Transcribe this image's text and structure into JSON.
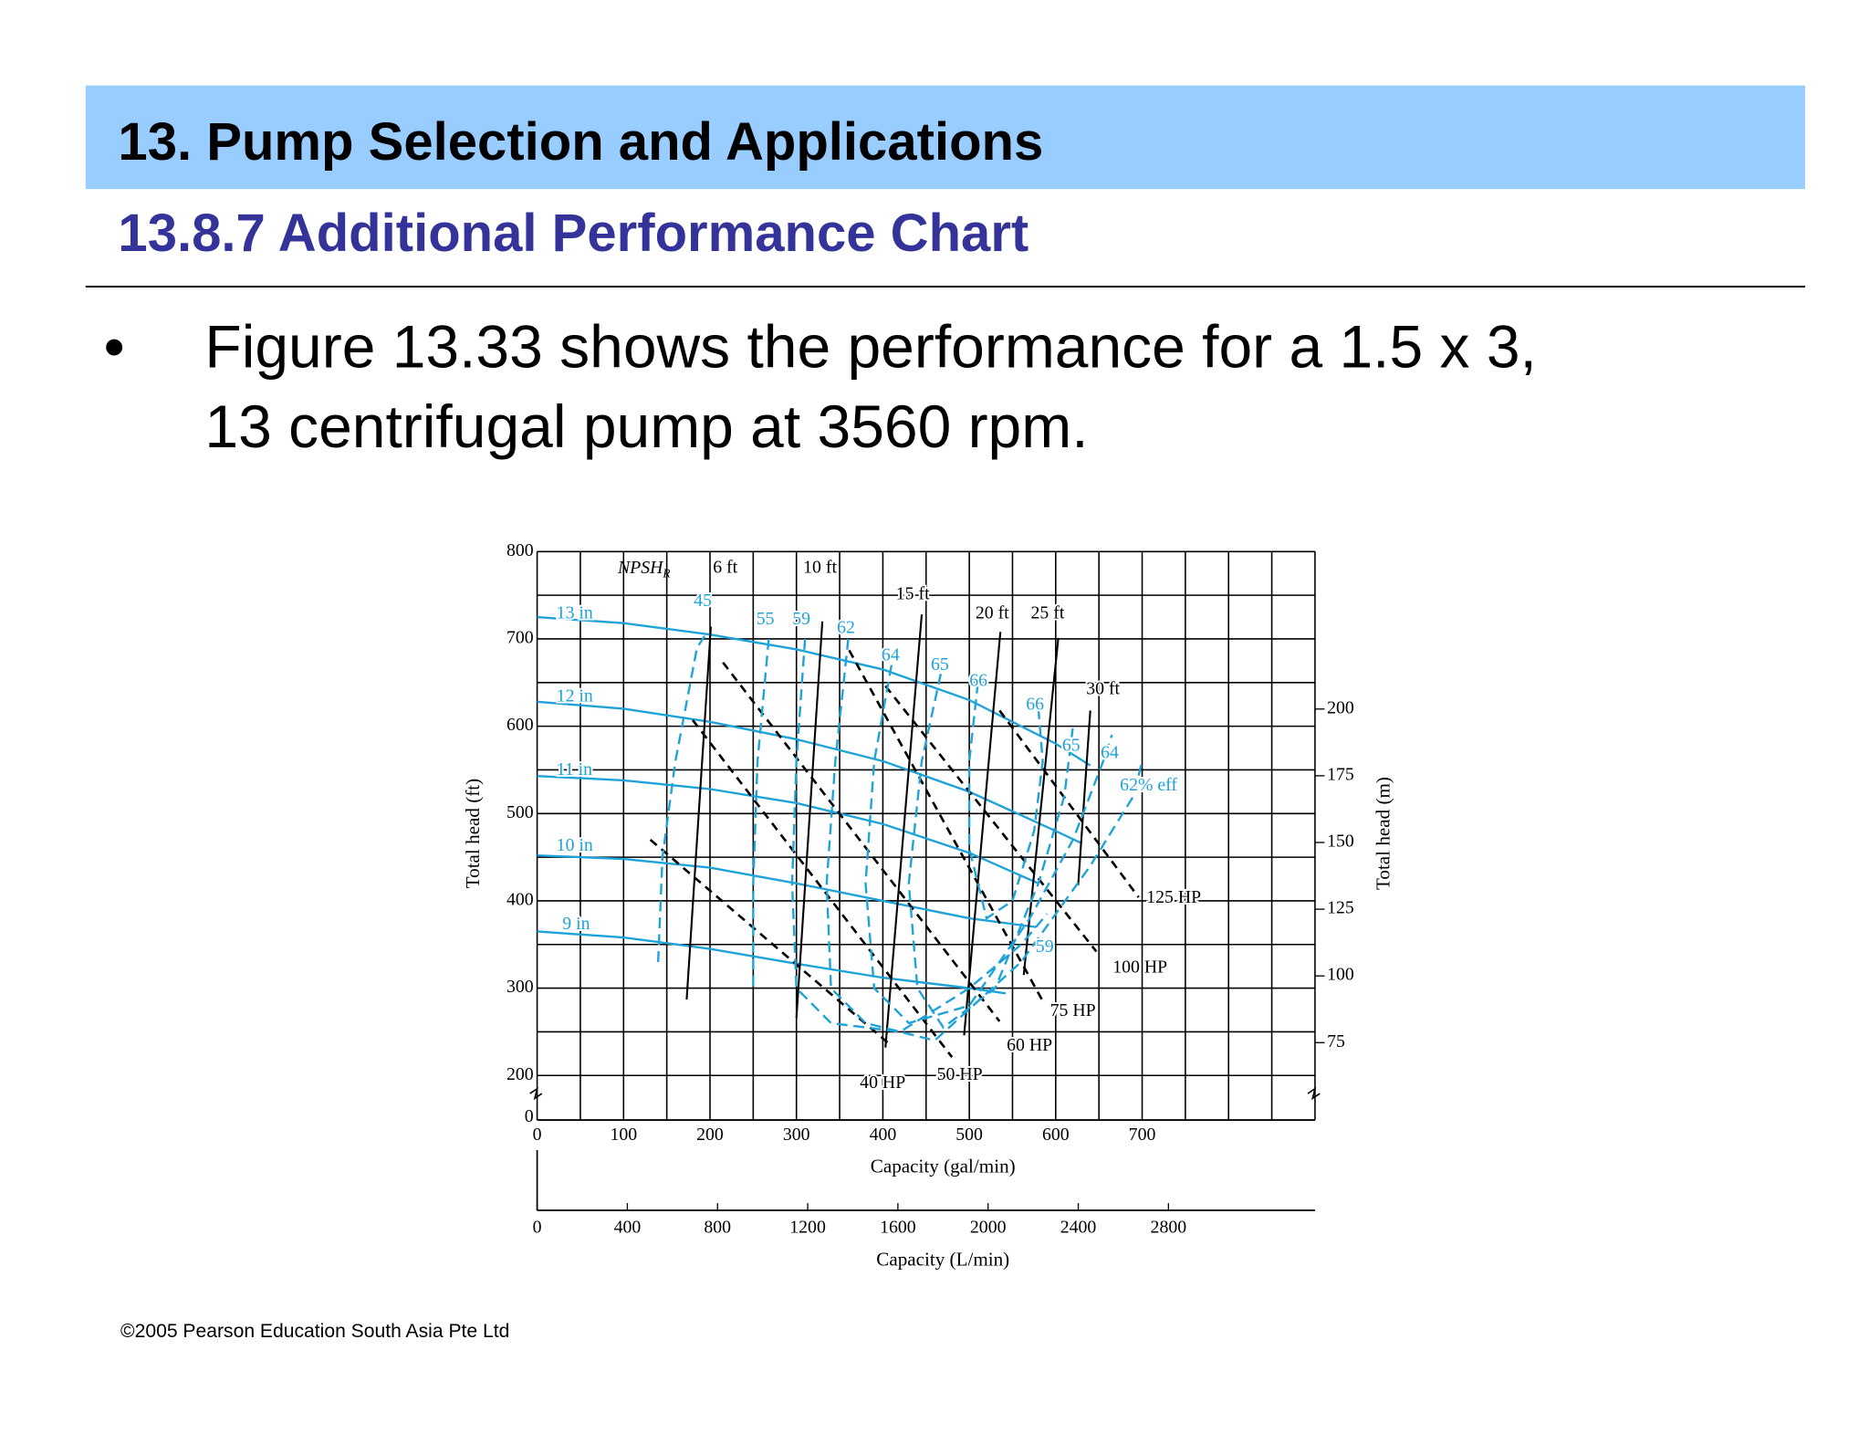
{
  "header": {
    "title": "13. Pump Selection and Applications",
    "subtitle": "13.8.7 Additional Performance Chart"
  },
  "bullet": {
    "symbol": "•",
    "lines": [
      "Figure 13.33 shows the performance for a 1.5 x 3,",
      "13 centrifugal pump at 3560 rpm."
    ]
  },
  "chart_data": {
    "type": "line",
    "xlabel": "Capacity (gal/min)",
    "x2label": "Capacity (L/min)",
    "ylabel": "Total head (ft)",
    "y2label": "Total head (m)",
    "xlim": [
      0,
      900
    ],
    "xticks": [
      0,
      100,
      200,
      300,
      400,
      500,
      600,
      700
    ],
    "xgrid": [
      0,
      50,
      100,
      150,
      200,
      250,
      300,
      350,
      400,
      450,
      500,
      550,
      600,
      650,
      700,
      750,
      800,
      850,
      900
    ],
    "x2lim": [
      0,
      3450
    ],
    "x2ticks": [
      0,
      400,
      800,
      1200,
      1600,
      2000,
      2400,
      2800
    ],
    "ylim": [
      200,
      800
    ],
    "yticks": [
      200,
      300,
      400,
      500,
      600,
      700,
      800
    ],
    "ygrid": [
      200,
      250,
      300,
      350,
      400,
      450,
      500,
      550,
      600,
      650,
      700,
      750,
      800
    ],
    "y_break_label": "0",
    "y2lim": [
      46,
      259
    ],
    "y2ticks": [
      75,
      100,
      125,
      150,
      175,
      200
    ],
    "npsh_title": "NPSH",
    "npsh_subscript": "R",
    "efficiency_note": "62% eff",
    "impeller_curves": [
      {
        "name": "13 in",
        "color": "#1ea3d8",
        "x": [
          0,
          100,
          200,
          300,
          400,
          500,
          600,
          640
        ],
        "values": [
          725,
          718,
          705,
          688,
          665,
          630,
          580,
          555
        ]
      },
      {
        "name": "12 in",
        "color": "#1ea3d8",
        "x": [
          0,
          100,
          200,
          300,
          400,
          500,
          600,
          630
        ],
        "values": [
          628,
          620,
          605,
          585,
          560,
          525,
          480,
          466
        ]
      },
      {
        "name": "11 in",
        "color": "#1ea3d8",
        "x": [
          0,
          100,
          200,
          300,
          400,
          500,
          580
        ],
        "values": [
          543,
          538,
          528,
          512,
          488,
          455,
          420
        ]
      },
      {
        "name": "10 in",
        "color": "#1ea3d8",
        "x": [
          0,
          100,
          200,
          300,
          400,
          500,
          577
        ],
        "values": [
          452,
          448,
          438,
          420,
          400,
          380,
          370
        ]
      },
      {
        "name": "9 in",
        "color": "#1ea3d8",
        "x": [
          0,
          100,
          200,
          300,
          400,
          500,
          542
        ],
        "values": [
          365,
          358,
          345,
          328,
          312,
          300,
          294
        ]
      }
    ],
    "power_curves": [
      {
        "name": "40 HP",
        "color": "#000000",
        "x": [
          131,
          410
        ],
        "values": [
          470,
          234
        ]
      },
      {
        "name": "50 HP",
        "color": "#000000",
        "x": [
          180,
          480
        ],
        "values": [
          607,
          221
        ]
      },
      {
        "name": "60 HP",
        "color": "#000000",
        "x": [
          215,
          535
        ],
        "values": [
          673,
          262
        ]
      },
      {
        "name": "75 HP",
        "color": "#000000",
        "x": [
          361,
          584
        ],
        "values": [
          687,
          287
        ]
      },
      {
        "name": "100 HP",
        "color": "#000000",
        "x": [
          403,
          647
        ],
        "values": [
          646,
          342
        ]
      },
      {
        "name": "125 HP",
        "color": "#000000",
        "x": [
          535,
          696
        ],
        "values": [
          618,
          404
        ]
      }
    ],
    "npsh_curves": [
      {
        "name": "6 ft",
        "color": "#000000",
        "x": [
          173,
          201
        ],
        "values": [
          287,
          714
        ]
      },
      {
        "name": "10 ft",
        "color": "#000000",
        "x": [
          300,
          330
        ],
        "values": [
          266,
          720
        ]
      },
      {
        "name": "15 ft",
        "color": "#000000",
        "x": [
          403,
          445
        ],
        "values": [
          232,
          728
        ]
      },
      {
        "name": "20 ft",
        "color": "#000000",
        "x": [
          494,
          536
        ],
        "values": [
          246,
          708
        ]
      },
      {
        "name": "25 ft",
        "color": "#000000",
        "x": [
          563,
          603
        ],
        "values": [
          315,
          701
        ]
      },
      {
        "name": "30 ft",
        "color": "#000000",
        "x": [
          626,
          640
        ],
        "values": [
          418,
          618
        ]
      }
    ],
    "efficiency_curves": [
      {
        "name": "45",
        "color": "#1ea3d8",
        "x": [
          140,
          145,
          160,
          185,
          195
        ],
        "values": [
          330,
          450,
          560,
          690,
          705
        ]
      },
      {
        "name": "55",
        "color": "#1ea3d8",
        "x": [
          268,
          255,
          250,
          250
        ],
        "values": [
          700,
          560,
          420,
          300
        ]
      },
      {
        "name": "59",
        "color": "#1ea3d8",
        "x": [
          310,
          300,
          295,
          300,
          340,
          420,
          500,
          560,
          590
        ],
        "values": [
          700,
          560,
          420,
          300,
          260,
          250,
          300,
          350,
          385
        ]
      },
      {
        "name": "62",
        "color": "#1ea3d8",
        "x": [
          360,
          345,
          335,
          340,
          380,
          460,
          560,
          640,
          690,
          700
        ],
        "values": [
          700,
          560,
          420,
          300,
          260,
          240,
          330,
          440,
          520,
          560
        ]
      },
      {
        "name": "64",
        "color": "#1ea3d8",
        "x": [
          410,
          390,
          380,
          390,
          430,
          500,
          570,
          620,
          655,
          665
        ],
        "values": [
          670,
          560,
          420,
          300,
          260,
          280,
          380,
          470,
          560,
          590
        ]
      },
      {
        "name": "65",
        "color": "#1ea3d8",
        "x": [
          467,
          445,
          430,
          440,
          470,
          530,
          580,
          610,
          620
        ],
        "values": [
          660,
          560,
          420,
          300,
          255,
          300,
          420,
          520,
          600
        ]
      },
      {
        "name": "66",
        "color": "#1ea3d8",
        "x": [
          510,
          500,
          500,
          520,
          550,
          575,
          585,
          580
        ],
        "values": [
          650,
          560,
          460,
          380,
          400,
          480,
          560,
          620
        ]
      }
    ]
  },
  "footer": "©2005 Pearson Education South Asia Pte Ltd"
}
